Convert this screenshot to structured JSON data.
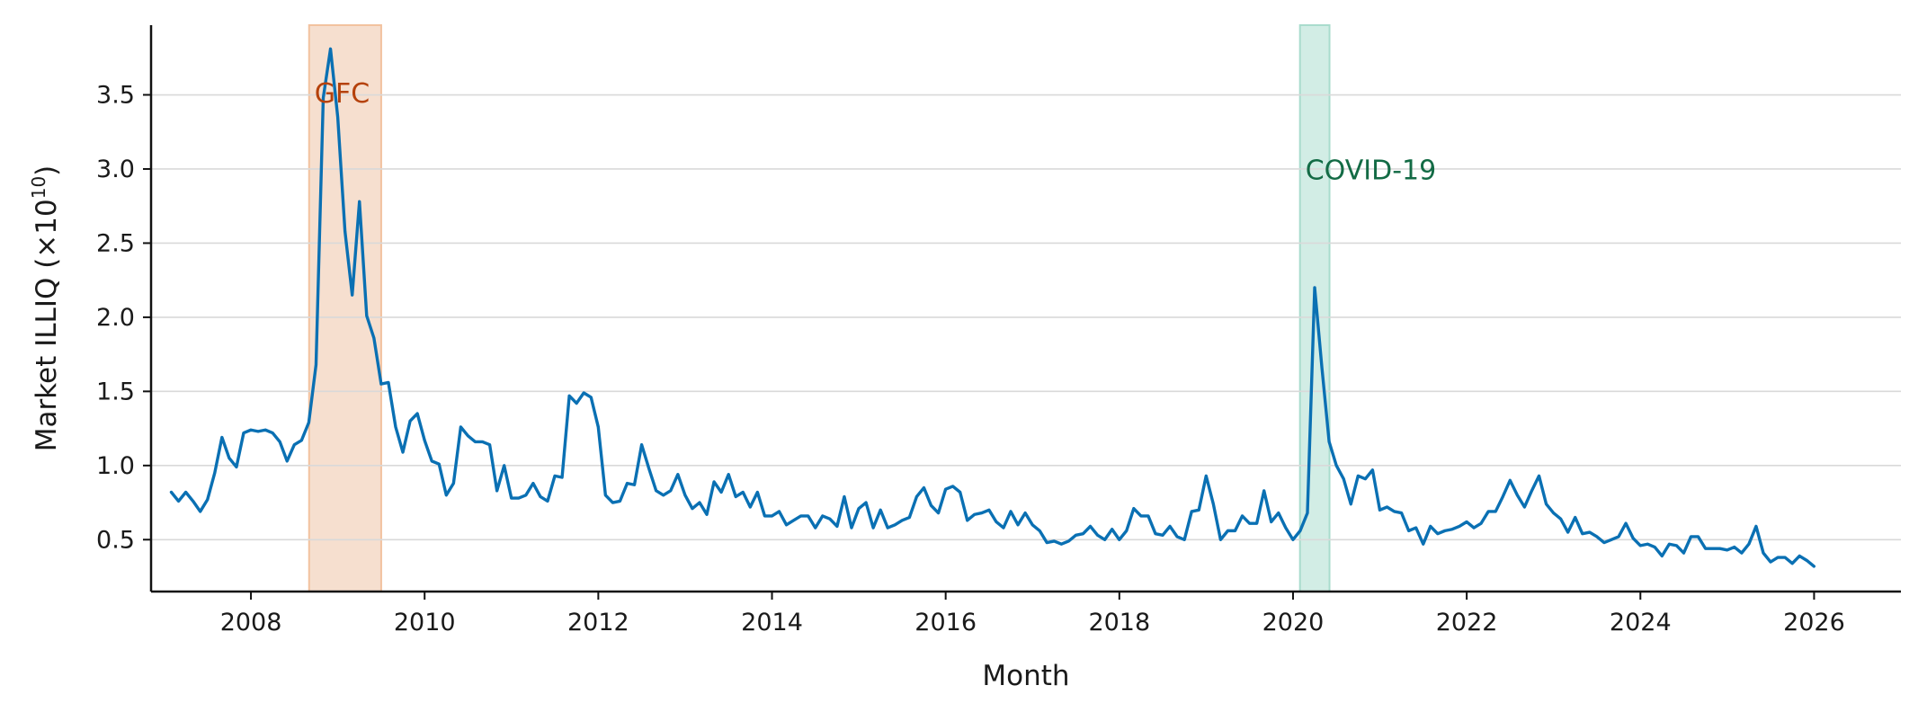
{
  "chart_data": {
    "type": "line",
    "title": "",
    "xlabel": "Month",
    "ylabel": "Market ILLIQ (×10",
    "ylabel_exponent": "10",
    "ylabel_suffix": ")",
    "xlim": [
      2006.85,
      2027.0
    ],
    "ylim": [
      0.15,
      3.97
    ],
    "x_ticks": [
      {
        "value": 2008,
        "label": "2008"
      },
      {
        "value": 2010,
        "label": "2010"
      },
      {
        "value": 2012,
        "label": "2012"
      },
      {
        "value": 2014,
        "label": "2014"
      },
      {
        "value": 2016,
        "label": "2016"
      },
      {
        "value": 2018,
        "label": "2018"
      },
      {
        "value": 2020,
        "label": "2020"
      },
      {
        "value": 2022,
        "label": "2022"
      },
      {
        "value": 2024,
        "label": "2024"
      },
      {
        "value": 2026,
        "label": "2026"
      }
    ],
    "y_ticks": [
      {
        "value": 0.5,
        "label": "0.5"
      },
      {
        "value": 1.0,
        "label": "1.0"
      },
      {
        "value": 1.5,
        "label": "1.5"
      },
      {
        "value": 2.0,
        "label": "2.0"
      },
      {
        "value": 2.5,
        "label": "2.5"
      },
      {
        "value": 3.0,
        "label": "3.0"
      },
      {
        "value": 3.5,
        "label": "3.5"
      }
    ],
    "grid": "horizontal",
    "shaded_regions": [
      {
        "label": "GFC",
        "x_start": 2008.67,
        "x_end": 2009.5,
        "fill": "#f6dfcf",
        "stroke": "#f2c29f",
        "label_color": "#b5420c",
        "label_y": 3.51
      },
      {
        "label": "COVID-19",
        "x_start": 2020.08,
        "x_end": 2020.42,
        "fill": "#d2ede5",
        "stroke": "#a9dccd",
        "label_color": "#136b45",
        "label_y": 2.99
      }
    ],
    "series": [
      {
        "color": "#0a70b3",
        "x_start": 2007.083,
        "x_step": 0.08333,
        "values": [
          0.82,
          0.76,
          0.82,
          0.76,
          0.69,
          0.77,
          0.95,
          1.19,
          1.05,
          0.99,
          1.22,
          1.24,
          1.23,
          1.24,
          1.22,
          1.16,
          1.03,
          1.14,
          1.17,
          1.29,
          1.68,
          3.48,
          3.81,
          3.35,
          2.58,
          2.15,
          2.78,
          2.01,
          1.86,
          1.55,
          1.56,
          1.26,
          1.09,
          1.3,
          1.35,
          1.17,
          1.03,
          1.01,
          0.8,
          0.88,
          1.26,
          1.2,
          1.16,
          1.16,
          1.14,
          0.83,
          1.0,
          0.78,
          0.78,
          0.8,
          0.88,
          0.79,
          0.76,
          0.93,
          0.92,
          1.47,
          1.42,
          1.49,
          1.46,
          1.26,
          0.8,
          0.75,
          0.76,
          0.88,
          0.87,
          1.14,
          0.98,
          0.83,
          0.8,
          0.83,
          0.94,
          0.8,
          0.71,
          0.75,
          0.67,
          0.89,
          0.82,
          0.94,
          0.79,
          0.82,
          0.72,
          0.82,
          0.66,
          0.66,
          0.69,
          0.6,
          0.63,
          0.66,
          0.66,
          0.58,
          0.66,
          0.64,
          0.59,
          0.79,
          0.58,
          0.71,
          0.75,
          0.58,
          0.7,
          0.58,
          0.6,
          0.63,
          0.65,
          0.79,
          0.85,
          0.73,
          0.68,
          0.84,
          0.86,
          0.82,
          0.63,
          0.67,
          0.68,
          0.7,
          0.62,
          0.58,
          0.69,
          0.6,
          0.68,
          0.6,
          0.56,
          0.48,
          0.49,
          0.47,
          0.49,
          0.53,
          0.54,
          0.59,
          0.53,
          0.5,
          0.57,
          0.5,
          0.56,
          0.71,
          0.66,
          0.66,
          0.54,
          0.53,
          0.59,
          0.52,
          0.5,
          0.69,
          0.7,
          0.93,
          0.74,
          0.5,
          0.56,
          0.56,
          0.66,
          0.61,
          0.61,
          0.83,
          0.62,
          0.68,
          0.58,
          0.5,
          0.56,
          0.68,
          2.2,
          1.66,
          1.16,
          1.0,
          0.91,
          0.74,
          0.93,
          0.91,
          0.97,
          0.7,
          0.72,
          0.69,
          0.68,
          0.56,
          0.58,
          0.47,
          0.59,
          0.54,
          0.56,
          0.57,
          0.59,
          0.62,
          0.58,
          0.61,
          0.69,
          0.69,
          0.79,
          0.9,
          0.8,
          0.72,
          0.83,
          0.93,
          0.74,
          0.68,
          0.64,
          0.55,
          0.65,
          0.54,
          0.55,
          0.52,
          0.48,
          0.5,
          0.52,
          0.61,
          0.51,
          0.46,
          0.47,
          0.45,
          0.39,
          0.47,
          0.46,
          0.41,
          0.52,
          0.52,
          0.44,
          0.44,
          0.44,
          0.43,
          0.45,
          0.41,
          0.47,
          0.59,
          0.41,
          0.35,
          0.38,
          0.38,
          0.34,
          0.39,
          0.36,
          0.32
        ]
      }
    ]
  }
}
